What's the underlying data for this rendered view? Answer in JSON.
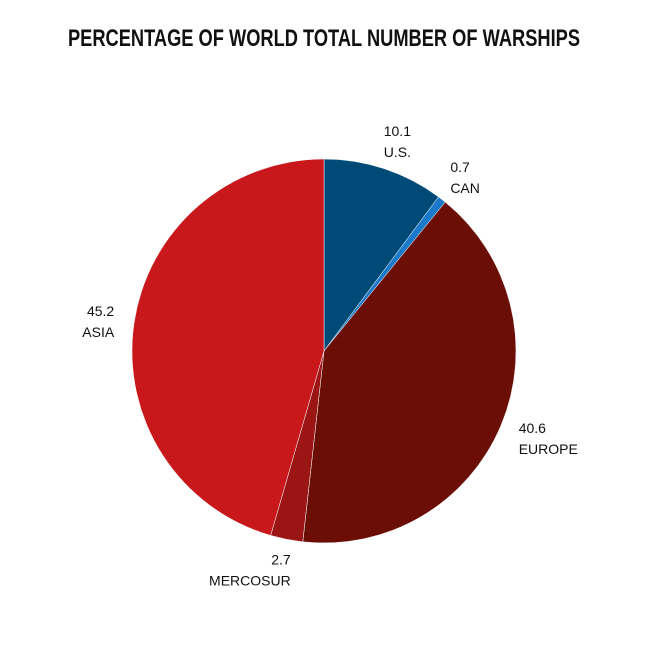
{
  "chart_data": {
    "type": "pie",
    "title": "PERCENTAGE OF WORLD TOTAL NUMBER OF WARSHIPS",
    "categories": [
      "U.S.",
      "CAN",
      "EUROPE",
      "MERCOSUR",
      "ASIA"
    ],
    "values": [
      10.1,
      0.7,
      40.6,
      2.7,
      45.2
    ],
    "colors": [
      "#004a77",
      "#1a7ac9",
      "#6b0f06",
      "#9b1515",
      "#c8181b"
    ]
  }
}
